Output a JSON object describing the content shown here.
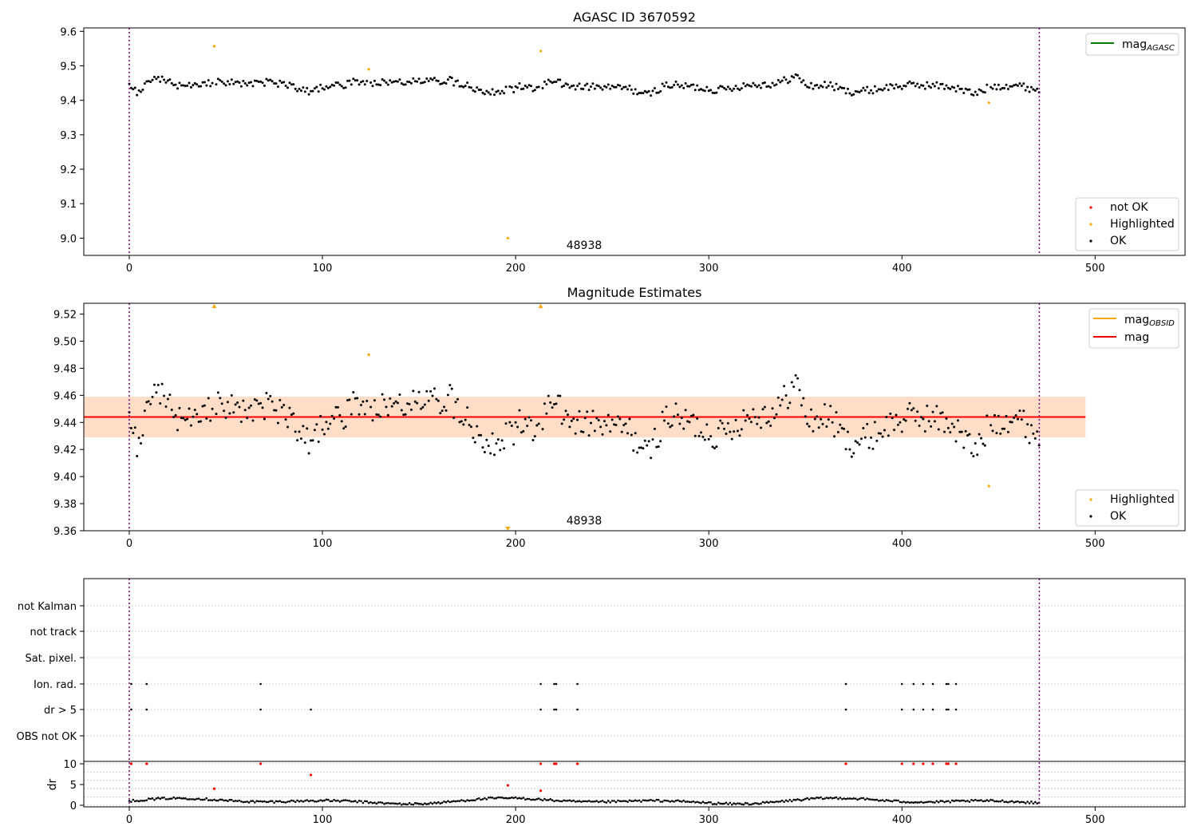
{
  "colors": {
    "ok": "#000000",
    "highlighted": "#ffa500",
    "not_ok": "#ff0000",
    "mag_agasc": "#008000",
    "mag_obsid": "#ffa500",
    "mag": "#ff0000",
    "band_obsid": "#ffdab9",
    "band_mag": "#ffc0cb",
    "obs_boundary": "#800080",
    "grid": "#b0b0b0"
  },
  "chart_data": [
    {
      "type": "scatter",
      "title": "AGASC ID 3670592",
      "xlabel": "",
      "ylabel": "",
      "xlim": [
        -23.55,
        546.55
      ],
      "ylim": [
        8.95,
        9.61
      ],
      "xticks": [
        "0",
        "100",
        "200",
        "300",
        "400",
        "500"
      ],
      "yticks": [
        "9.0",
        "9.1",
        "9.2",
        "9.3",
        "9.4",
        "9.5",
        "9.6"
      ],
      "obsid_label": "48938",
      "obs_boundaries": [
        0,
        471
      ],
      "legend_lines": [
        {
          "label": "mag",
          "sub": "AGASC",
          "color_key": "mag_agasc"
        }
      ],
      "legend_points": [
        {
          "label": "not OK",
          "color_key": "not_ok"
        },
        {
          "label": "Highlighted",
          "color_key": "highlighted"
        },
        {
          "label": "OK",
          "color_key": "ok"
        }
      ],
      "grid": false,
      "highlighted": [
        {
          "x": 44,
          "y": 9.557
        },
        {
          "x": 124,
          "y": 9.49
        },
        {
          "x": 196,
          "y": 9.0
        },
        {
          "x": 213,
          "y": 9.543
        },
        {
          "x": 445,
          "y": 9.393
        }
      ]
    },
    {
      "type": "scatter",
      "title": "Magnitude Estimates",
      "xlabel": "",
      "ylabel": "",
      "xlim": [
        -23.55,
        546.55
      ],
      "ylim": [
        9.36,
        9.528
      ],
      "xticks": [
        "0",
        "100",
        "200",
        "300",
        "400",
        "500"
      ],
      "yticks": [
        "9.36",
        "9.38",
        "9.40",
        "9.42",
        "9.44",
        "9.46",
        "9.48",
        "9.50",
        "9.52"
      ],
      "obsid_label": "48938",
      "obs_boundaries": [
        0,
        471
      ],
      "legend_lines": [
        {
          "label": "mag",
          "sub": "OBSID",
          "color_key": "mag_obsid"
        },
        {
          "label": "mag",
          "sub": "",
          "color_key": "mag"
        }
      ],
      "legend_points": [
        {
          "label": "Highlighted",
          "color_key": "highlighted"
        },
        {
          "label": "OK",
          "color_key": "ok"
        }
      ],
      "grid": false,
      "mag_obsid": {
        "mean": 9.444,
        "low": 9.429,
        "high": 9.459,
        "x": [
          -23.55,
          495
        ]
      },
      "mag": {
        "mean": 9.444,
        "low": 9.429,
        "high": 9.459,
        "x": [
          -23.55,
          495
        ]
      },
      "highlighted": [
        {
          "x": 124,
          "y": 9.49
        },
        {
          "x": 445,
          "y": 9.393
        }
      ],
      "clipped_high": [
        44,
        213
      ],
      "clipped_low": [
        196
      ]
    },
    {
      "type": "scatter",
      "title": "",
      "xlabel": "",
      "ylabel": "",
      "xlim": [
        -23.55,
        546.55
      ],
      "xticks": [
        "0",
        "100",
        "200",
        "300",
        "400",
        "500"
      ],
      "flag_rows": [
        "not Kalman",
        "not track",
        "Sat. pixel.",
        "Ion. rad.",
        "dr > 5",
        "OBS not OK"
      ],
      "grid": true,
      "obs_boundaries": [
        0,
        471
      ],
      "flags": {
        "Ion. rad.": [
          1,
          9,
          68,
          213,
          220,
          221,
          232,
          371,
          400,
          406,
          411,
          416,
          423,
          424,
          428
        ],
        "dr > 5": [
          1,
          9,
          68,
          94,
          213,
          220,
          221,
          232,
          371,
          400,
          406,
          411,
          416,
          423,
          424,
          428
        ]
      }
    },
    {
      "type": "scatter",
      "title": "",
      "xlabel": "",
      "ylabel": "dr",
      "xlim": [
        -23.55,
        546.55
      ],
      "ylim": [
        -0.5,
        10.5
      ],
      "xticks": [
        "0",
        "100",
        "200",
        "300",
        "400",
        "500"
      ],
      "yticks": [
        "0",
        "5",
        "10"
      ],
      "grid": true,
      "obs_boundaries": [
        0,
        471
      ],
      "not_ok": [
        {
          "x": 1,
          "y": 10
        },
        {
          "x": 9,
          "y": 10
        },
        {
          "x": 44,
          "y": 4
        },
        {
          "x": 68,
          "y": 10
        },
        {
          "x": 94,
          "y": 7.3
        },
        {
          "x": 196,
          "y": 4.8
        },
        {
          "x": 213,
          "y": 3.5
        },
        {
          "x": 213,
          "y": 10
        },
        {
          "x": 220,
          "y": 10
        },
        {
          "x": 221,
          "y": 10
        },
        {
          "x": 232,
          "y": 10
        },
        {
          "x": 371,
          "y": 10
        },
        {
          "x": 400,
          "y": 10
        },
        {
          "x": 406,
          "y": 10
        },
        {
          "x": 411,
          "y": 10
        },
        {
          "x": 416,
          "y": 10
        },
        {
          "x": 423,
          "y": 10
        },
        {
          "x": 424,
          "y": 10
        },
        {
          "x": 428,
          "y": 10
        }
      ]
    }
  ]
}
